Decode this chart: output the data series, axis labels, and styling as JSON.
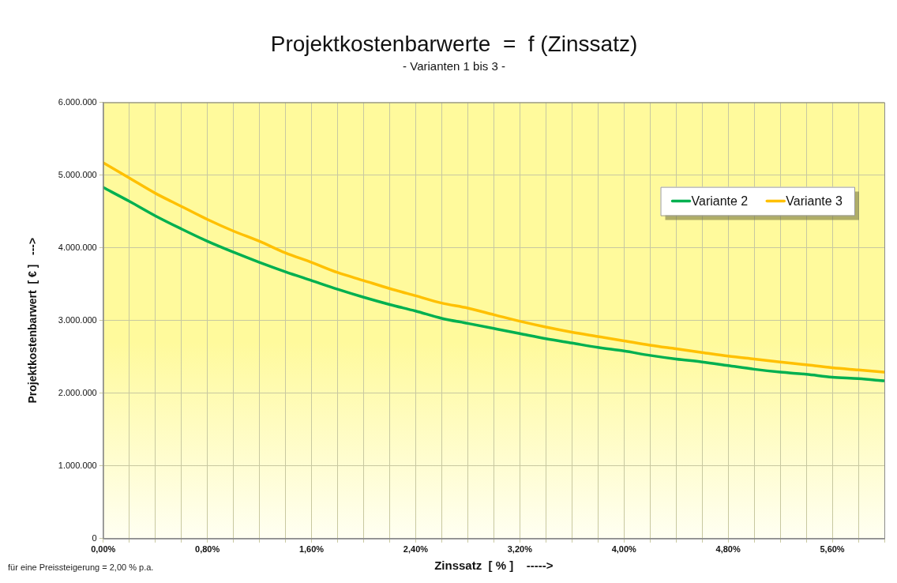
{
  "chart_data": {
    "type": "line",
    "title": "Projektkostenbarwerte  =  f (Zinssatz)",
    "subtitle": "- Varianten 1 bis 3 -",
    "xlabel": "Zinssatz  [ % ]    ----->",
    "ylabel": "Projektkostenbarwert  [ € ]   --->",
    "annotations": [
      "für eine Preissteigerung  = 2,00 % p.a."
    ],
    "x": [
      0,
      0.2,
      0.4,
      0.6,
      0.8,
      1.0,
      1.2,
      1.4,
      1.6,
      1.8,
      2.0,
      2.2,
      2.4,
      2.6,
      2.8,
      3.0,
      3.2,
      3.4,
      3.6,
      3.8,
      4.0,
      4.2,
      4.4,
      4.6,
      4.8,
      5.0,
      5.2,
      5.4,
      5.6,
      5.8,
      6.0
    ],
    "series": [
      {
        "name": "Variante 2",
        "color": "#00b050",
        "values": [
          4830000,
          4640000,
          4440000,
          4260000,
          4090000,
          3940000,
          3800000,
          3670000,
          3550000,
          3430000,
          3320000,
          3220000,
          3130000,
          3030000,
          2960000,
          2890000,
          2820000,
          2750000,
          2690000,
          2630000,
          2580000,
          2520000,
          2470000,
          2430000,
          2380000,
          2330000,
          2290000,
          2260000,
          2220000,
          2200000,
          2170000
        ]
      },
      {
        "name": "Variante 3",
        "color": "#ffc000",
        "values": [
          5170000,
          4960000,
          4750000,
          4570000,
          4390000,
          4230000,
          4090000,
          3930000,
          3800000,
          3660000,
          3550000,
          3440000,
          3340000,
          3240000,
          3170000,
          3080000,
          2990000,
          2910000,
          2840000,
          2780000,
          2720000,
          2660000,
          2610000,
          2560000,
          2510000,
          2470000,
          2430000,
          2390000,
          2350000,
          2320000,
          2290000
        ]
      }
    ],
    "xlim": [
      0,
      6
    ],
    "xticks": [
      {
        "value": 0,
        "label": "0,00%"
      },
      {
        "value": 0.2,
        "label": null
      },
      {
        "value": 0.4,
        "label": null
      },
      {
        "value": 0.6,
        "label": null
      },
      {
        "value": 0.8,
        "label": "0,80%"
      },
      {
        "value": 1.0,
        "label": null
      },
      {
        "value": 1.2,
        "label": null
      },
      {
        "value": 1.4,
        "label": null
      },
      {
        "value": 1.6,
        "label": "1,60%"
      },
      {
        "value": 1.8,
        "label": null
      },
      {
        "value": 2.0,
        "label": null
      },
      {
        "value": 2.2,
        "label": null
      },
      {
        "value": 2.4,
        "label": "2,40%"
      },
      {
        "value": 2.6,
        "label": null
      },
      {
        "value": 2.8,
        "label": null
      },
      {
        "value": 3.0,
        "label": null
      },
      {
        "value": 3.2,
        "label": "3,20%"
      },
      {
        "value": 3.4,
        "label": null
      },
      {
        "value": 3.6,
        "label": null
      },
      {
        "value": 3.8,
        "label": null
      },
      {
        "value": 4.0,
        "label": "4,00%"
      },
      {
        "value": 4.2,
        "label": null
      },
      {
        "value": 4.4,
        "label": null
      },
      {
        "value": 4.6,
        "label": null
      },
      {
        "value": 4.8,
        "label": "4,80%"
      },
      {
        "value": 5.0,
        "label": null
      },
      {
        "value": 5.2,
        "label": null
      },
      {
        "value": 5.4,
        "label": null
      },
      {
        "value": 5.6,
        "label": "5,60%"
      },
      {
        "value": 5.8,
        "label": null
      },
      {
        "value": 6.0,
        "label": null
      }
    ],
    "ylim": [
      0,
      6000000
    ],
    "yticks": [
      0,
      {
        "value": 1000000,
        "label": "1.000.000"
      },
      {
        "value": 2000000,
        "label": "2.000.000"
      },
      {
        "value": 3000000,
        "label": "3.000.000"
      },
      {
        "value": 4000000,
        "label": "4.000.000"
      },
      {
        "value": 5000000,
        "label": "5.000.000"
      },
      {
        "value": 6000000,
        "label": "6.000.000"
      }
    ],
    "grid": true,
    "legend": "top right",
    "marker": "none",
    "line_style": "solid"
  }
}
